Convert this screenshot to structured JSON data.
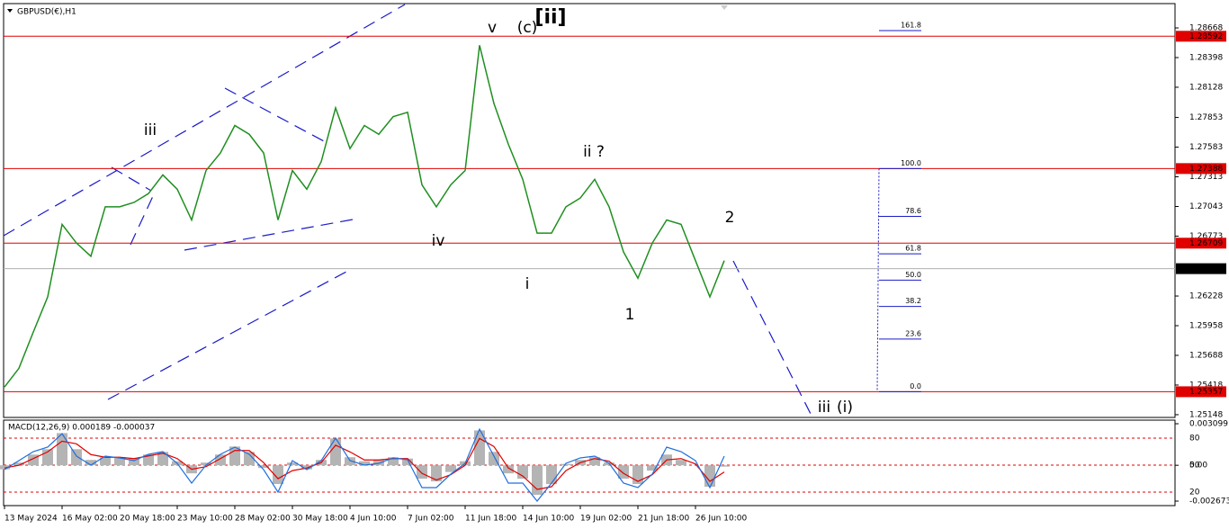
{
  "chart_data": [
    {
      "type": "line",
      "title": "GBPUSD(€),H1",
      "categories": [
        "13 May 2024",
        null,
        null,
        null,
        "16 May 02:00",
        null,
        null,
        null,
        "20 May 18:00",
        null,
        null,
        null,
        "23 May 10:00",
        null,
        null,
        null,
        "28 May 02:00",
        null,
        null,
        null,
        "30 May 18:00",
        null,
        null,
        null,
        "4 Jun 10:00",
        null,
        null,
        null,
        "7 Jun 02:00",
        null,
        null,
        null,
        "11 Jun 18:00",
        null,
        null,
        null,
        "14 Jun 10:00",
        null,
        null,
        null,
        "19 Jun 02:00",
        null,
        null,
        null,
        "21 Jun 18:00",
        null,
        null,
        null,
        "26 Jun 10:00",
        null,
        null
      ],
      "values": [
        1.254,
        1.2557,
        1.259,
        1.2622,
        1.2688,
        1.2671,
        1.2659,
        1.2704,
        1.2704,
        1.2708,
        1.2716,
        1.2733,
        1.272,
        1.2692,
        1.2737,
        1.2753,
        1.2778,
        1.277,
        1.2753,
        1.2692,
        1.2737,
        1.272,
        1.2745,
        1.2794,
        1.2757,
        1.2778,
        1.277,
        1.2786,
        1.279,
        1.2724,
        1.2704,
        1.2724,
        1.2737,
        1.2851,
        1.2798,
        1.2761,
        1.2729,
        1.268,
        1.268,
        1.2704,
        1.2712,
        1.2729,
        1.2704,
        1.2663,
        1.2639,
        1.2671,
        1.2692,
        1.2688,
        1.2655,
        1.2622,
        1.2655
      ],
      "color": "#1f8f1f",
      "ylim": [
        1.25123,
        1.28881
      ],
      "yticks": [
        1.25148,
        1.25418,
        1.25688,
        1.25958,
        1.26228,
        1.26773,
        1.27043,
        1.27313,
        1.27583,
        1.27853,
        1.28128,
        1.28398,
        1.28668
      ],
      "hlines": [
        {
          "value": 1.28592,
          "color": "#e00000"
        },
        {
          "value": 1.27388,
          "color": "#e00000"
        },
        {
          "value": 1.26709,
          "color": "#e00000"
        },
        {
          "value": 1.25357,
          "color": "#e00000"
        },
        {
          "value": 1.26477,
          "color": "#b0b0b0"
        }
      ],
      "fibonacci": {
        "color": "#1b1bc8",
        "levels": [
          161.8,
          {
            "value": 100,
            "label": "100.0"
          },
          78.6,
          61.8,
          {
            "value": 50,
            "label": "50.0"
          },
          38.2,
          23.6,
          {
            "value": 0,
            "label": "0.0"
          }
        ]
      },
      "annotations": [
        {
          "text": "v",
          "color": "#e020e0"
        },
        {
          "text": "(c)",
          "color": "#1b1bc8"
        },
        {
          "text": "[ii]",
          "color": "#1f8f1f"
        },
        {
          "text": "iii",
          "color": "#e020e0"
        },
        {
          "text": "iv",
          "color": "#e020e0"
        },
        {
          "text": "i",
          "color": "#e020e0"
        },
        {
          "text": "ii ?",
          "color": "#e020e0"
        },
        {
          "text": "1",
          "color": "#000000"
        },
        {
          "text": "2",
          "color": "#000000"
        },
        {
          "text": "iii",
          "color": "#e020e0"
        },
        {
          "text": "(i)",
          "color": "#1b1bc8"
        }
      ]
    },
    {
      "type": "macd",
      "title": "MACD(12,26,9) 0.000189 -0.000037",
      "series": [
        {
          "type": "bar",
          "color": "#b4b4b4",
          "values": [
            -0.0003,
            0.0002,
            0.0008,
            0.0012,
            0.0024,
            0.0012,
            0.0004,
            0.0006,
            0.0006,
            0.0005,
            0.0008,
            0.001,
            0.0003,
            -0.0006,
            0.0002,
            0.0008,
            0.0014,
            0.001,
            -0.0002,
            -0.0014,
            0.0002,
            -0.0003,
            0.0004,
            0.002,
            0.0006,
            0.0003,
            0.0004,
            0.0006,
            0.0005,
            -0.001,
            -0.0012,
            -0.0005,
            0.0003,
            0.0026,
            0.001,
            -0.0006,
            -0.001,
            -0.0022,
            -0.0014,
            0.0001,
            0.0004,
            0.0006,
            0.0002,
            -0.001,
            -0.0014,
            -0.0004,
            0.0008,
            0.0004,
            0.0,
            -0.0016,
            -0.0001
          ]
        },
        {
          "type": "line",
          "color": "#e00000",
          "values": [
            -0.0002,
            0.0,
            0.0005,
            0.001,
            0.0018,
            0.0016,
            0.0008,
            0.0006,
            0.0006,
            0.0005,
            0.0007,
            0.0009,
            0.0005,
            -0.0003,
            -0.0001,
            0.0005,
            0.0011,
            0.0011,
            0.0002,
            -0.001,
            -0.0004,
            -0.0002,
            0.0002,
            0.0015,
            0.001,
            0.0004,
            0.0004,
            0.0005,
            0.0005,
            -0.0006,
            -0.0011,
            -0.0007,
            0.0,
            0.002,
            0.0014,
            -0.0002,
            -0.0008,
            -0.0018,
            -0.0016,
            -0.0004,
            0.0002,
            0.0005,
            0.0003,
            -0.0006,
            -0.0012,
            -0.0007,
            0.0004,
            0.0005,
            0.0001,
            -0.0012,
            -0.0005
          ]
        },
        {
          "type": "line",
          "axis": "y2",
          "color": "#1e6fe0",
          "values": [
            45,
            55,
            65,
            70,
            85,
            60,
            50,
            60,
            58,
            55,
            62,
            65,
            52,
            30,
            50,
            62,
            70,
            62,
            45,
            20,
            55,
            45,
            55,
            80,
            55,
            50,
            52,
            58,
            56,
            25,
            25,
            40,
            52,
            90,
            60,
            30,
            30,
            10,
            30,
            52,
            58,
            60,
            52,
            30,
            25,
            40,
            70,
            65,
            55,
            25,
            60
          ]
        }
      ],
      "ylim": [
        -0.002673,
        0.003099
      ],
      "yticks": [
        -0.002673,
        {
          "value": 0,
          "label": "0.00"
        },
        0.003099
      ],
      "y2lim": [
        5,
        100
      ],
      "y2ticks": [
        20,
        50,
        80
      ]
    }
  ]
}
